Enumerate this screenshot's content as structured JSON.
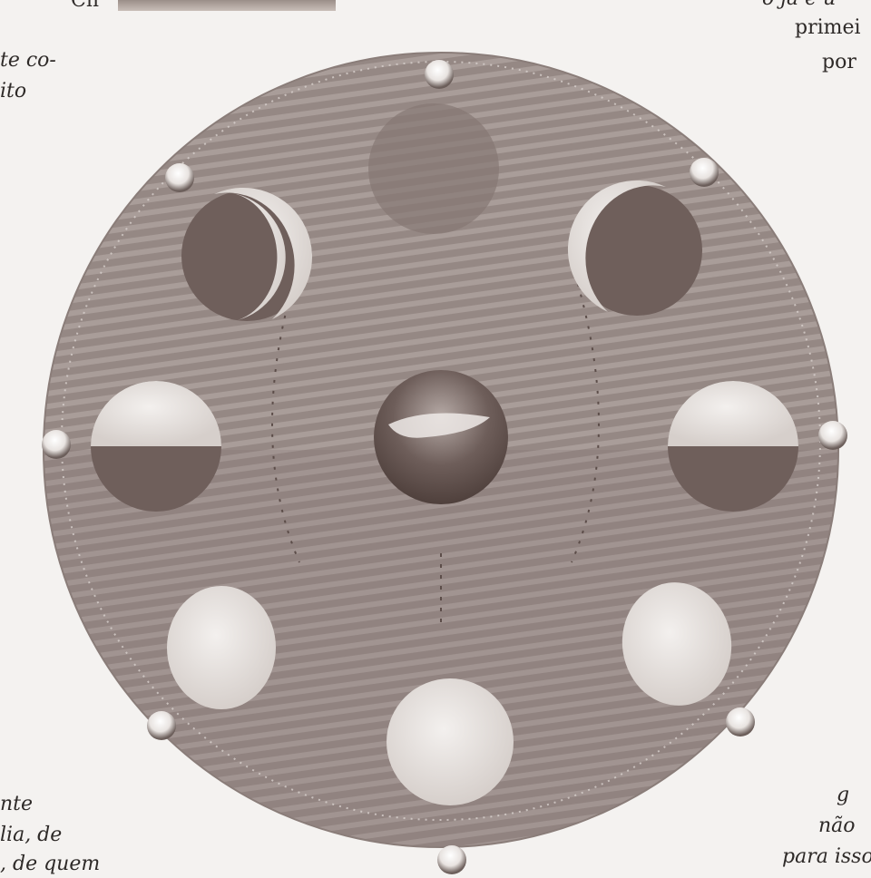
{
  "page_text": {
    "top_left": "Ch",
    "left_1": "te co-",
    "left_2": "ito",
    "left_bottom_1": "nte",
    "left_bottom_2": "lia,  de",
    "left_bottom_3": ",  de  quem",
    "top_right": "o  já  é  u",
    "right_1": "primei",
    "right_2": "por",
    "right_bottom_1": "g",
    "right_bottom_2": "não",
    "right_bottom_3": "para  isso"
  },
  "illustration": {
    "subject": "moon phases around the earth",
    "colors": {
      "disc": "#9a8c88",
      "disc_shadow": "#7a6c68",
      "lit": "#e6e1dd",
      "dark": "#6b5a56",
      "earth": "#5e4e4a"
    }
  }
}
